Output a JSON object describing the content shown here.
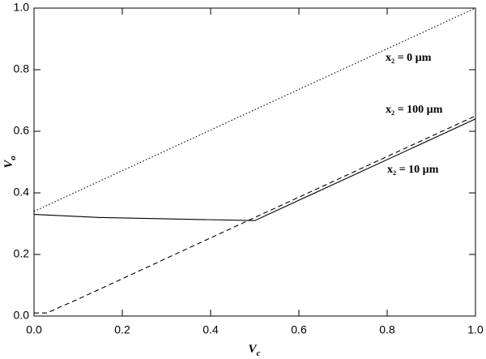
{
  "chart_data": {
    "type": "line",
    "x_label": {
      "main": "V",
      "sub": "c"
    },
    "y_label": {
      "main": "V",
      "sub": "o"
    },
    "xlim": [
      0,
      1
    ],
    "ylim": [
      0,
      1
    ],
    "xticks": [
      {
        "value": 0,
        "label": "0.0"
      },
      {
        "value": 0.2,
        "label": "0.2"
      },
      {
        "value": 0.4,
        "label": "0.4"
      },
      {
        "value": 0.6,
        "label": "0.6"
      },
      {
        "value": 0.8,
        "label": "0.8"
      },
      {
        "value": 1,
        "label": "1.0"
      }
    ],
    "yticks": [
      {
        "value": 0,
        "label": "0.0"
      },
      {
        "value": 0.2,
        "label": "0.2"
      },
      {
        "value": 0.4,
        "label": "0.4"
      },
      {
        "value": 0.6,
        "label": "0.6"
      },
      {
        "value": 0.8,
        "label": "0.8"
      },
      {
        "value": 1,
        "label": "1.0"
      }
    ],
    "series": [
      {
        "name": "x₂ = 0 µm",
        "color": "#000000",
        "dash": "1.5,2.5",
        "x": [
          0,
          1
        ],
        "values": [
          0.34,
          1.0
        ]
      },
      {
        "name": "x₂ = 100 µm",
        "color": "#000000",
        "dash": "6,4",
        "x": [
          0,
          0.03,
          0.06,
          0.1,
          0.5,
          1.0
        ],
        "values": [
          0.01,
          0.01,
          0.03,
          0.055,
          0.32,
          0.65
        ]
      },
      {
        "name": "x₂ = 10 µm",
        "color": "#000000",
        "dash": "none",
        "x": [
          0,
          0.15,
          0.5,
          1.0
        ],
        "values": [
          0.33,
          0.32,
          0.31,
          0.64
        ]
      }
    ]
  }
}
